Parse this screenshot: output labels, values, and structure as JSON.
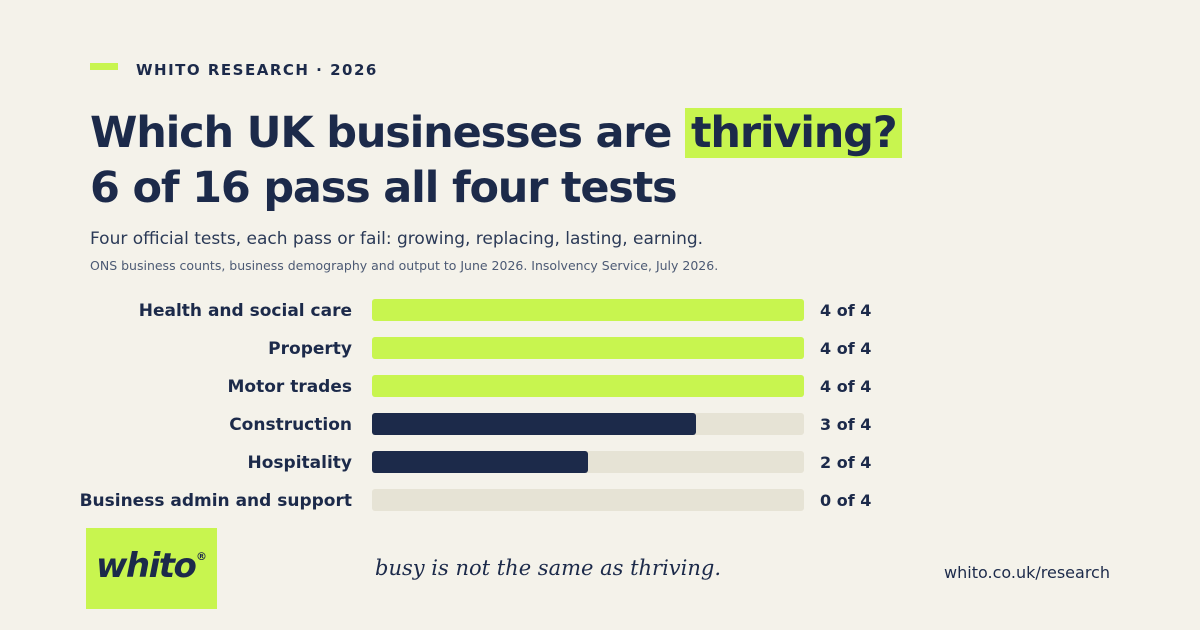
{
  "header": {
    "eyebrow": "WHITO RESEARCH · 2026",
    "title_line1_pre": "Which UK businesses are ",
    "title_line1_highlight": "thriving?",
    "title_line2": "6 of 16 pass all four tests",
    "subtitle": "Four official tests, each pass or fail: growing, replacing, lasting, earning.",
    "source": "ONS business counts, business demography and output to June 2026. Insolvency Service, July 2026."
  },
  "footer": {
    "logo_text": "whito",
    "logo_mark": "®",
    "tagline": "busy is not the same as thriving.",
    "url": "whito.co.uk/research"
  },
  "colors": {
    "background": "#f4f2ea",
    "accent": "#c8f54f",
    "navy": "#1c2a4a",
    "track": "#e6e3d5"
  },
  "chart_data": {
    "type": "bar",
    "orientation": "horizontal",
    "categories": [
      "Health and social care",
      "Property",
      "Motor trades",
      "Construction",
      "Hospitality",
      "Business admin and support"
    ],
    "values": [
      4,
      4,
      4,
      3,
      2,
      0
    ],
    "max": 4,
    "value_labels": [
      "4 of 4",
      "4 of 4",
      "4 of 4",
      "3 of 4",
      "2 of 4",
      "0 of 4"
    ]
  }
}
